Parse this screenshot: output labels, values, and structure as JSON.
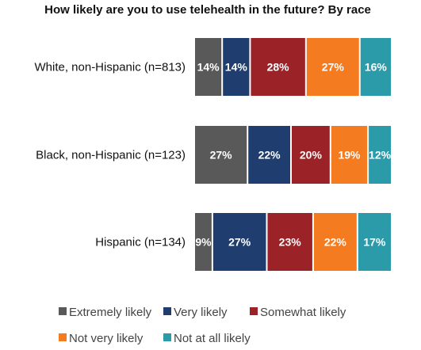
{
  "chart_data": {
    "type": "bar",
    "orientation": "horizontal",
    "stacked": true,
    "title": "How likely are you to use telehealth in the future? By race",
    "categories": [
      "White, non-Hispanic (n=813)",
      "Black, non-Hispanic (n=123)",
      "Hispanic (n=134)"
    ],
    "series": [
      {
        "name": "Extremely likely",
        "values": [
          14,
          27,
          9
        ],
        "color": "#595959"
      },
      {
        "name": "Very likely",
        "values": [
          14,
          22,
          27
        ],
        "color": "#1f3d6e"
      },
      {
        "name": "Somewhat likely",
        "values": [
          28,
          20,
          23
        ],
        "color": "#9b2227"
      },
      {
        "name": "Not very likely",
        "values": [
          27,
          19,
          22
        ],
        "color": "#f47b20"
      },
      {
        "name": "Not at all likely",
        "values": [
          16,
          12,
          17
        ],
        "color": "#2b9aa9"
      }
    ],
    "value_suffix": "%",
    "legend_position": "bottom",
    "grid": false
  }
}
